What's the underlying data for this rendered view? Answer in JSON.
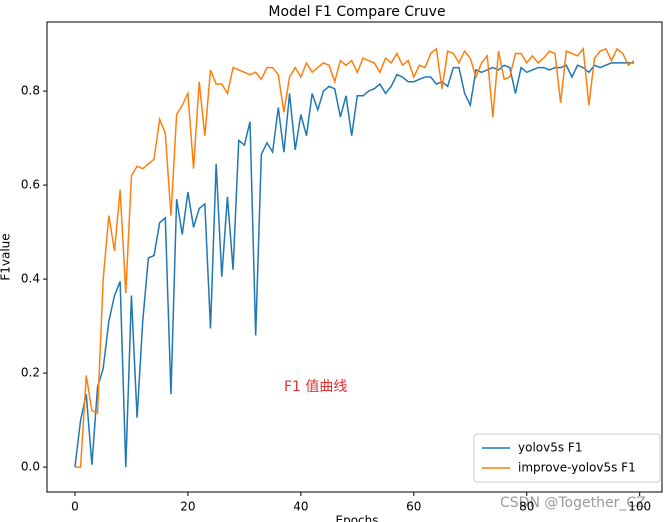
{
  "chart_data": {
    "type": "line",
    "title": "Model F1 Compare Cruve",
    "xlabel": "Epochs",
    "ylabel": "F1value",
    "annotations": [
      "F1  值曲线",
      "CSDN @Together_CZ"
    ],
    "x": [
      0,
      1,
      2,
      3,
      4,
      5,
      6,
      7,
      8,
      9,
      10,
      11,
      12,
      13,
      14,
      15,
      16,
      17,
      18,
      19,
      20,
      21,
      22,
      23,
      24,
      25,
      26,
      27,
      28,
      29,
      30,
      31,
      32,
      33,
      34,
      35,
      36,
      37,
      38,
      39,
      40,
      41,
      42,
      43,
      44,
      45,
      46,
      47,
      48,
      49,
      50,
      51,
      52,
      53,
      54,
      55,
      56,
      57,
      58,
      59,
      60,
      61,
      62,
      63,
      64,
      65,
      66,
      67,
      68,
      69,
      70,
      71,
      72,
      73,
      74,
      75,
      76,
      77,
      78,
      79,
      80,
      81,
      82,
      83,
      84,
      85,
      86,
      87,
      88,
      89,
      90,
      91,
      92,
      93,
      94,
      95,
      96,
      97,
      98,
      99
    ],
    "series": [
      {
        "name": "yolov5s F1",
        "color": "#1f77b4",
        "values": [
          0.0,
          0.1,
          0.155,
          0.005,
          0.17,
          0.21,
          0.31,
          0.365,
          0.395,
          0.0,
          0.365,
          0.105,
          0.31,
          0.445,
          0.45,
          0.52,
          0.53,
          0.155,
          0.57,
          0.495,
          0.585,
          0.51,
          0.55,
          0.56,
          0.295,
          0.645,
          0.405,
          0.575,
          0.42,
          0.695,
          0.685,
          0.735,
          0.28,
          0.665,
          0.69,
          0.67,
          0.765,
          0.67,
          0.795,
          0.675,
          0.75,
          0.705,
          0.795,
          0.76,
          0.8,
          0.81,
          0.805,
          0.745,
          0.79,
          0.705,
          0.79,
          0.79,
          0.8,
          0.805,
          0.815,
          0.795,
          0.81,
          0.835,
          0.83,
          0.82,
          0.82,
          0.825,
          0.83,
          0.83,
          0.815,
          0.82,
          0.81,
          0.85,
          0.85,
          0.795,
          0.77,
          0.845,
          0.84,
          0.845,
          0.85,
          0.845,
          0.855,
          0.85,
          0.795,
          0.85,
          0.84,
          0.845,
          0.85,
          0.85,
          0.845,
          0.85,
          0.85,
          0.855,
          0.83,
          0.855,
          0.85,
          0.84,
          0.855,
          0.85,
          0.855,
          0.86,
          0.86,
          0.86,
          0.86,
          0.86
        ]
      },
      {
        "name": "improve-yolov5s F1",
        "color": "#ff7f0e",
        "values": [
          0.0,
          0.0,
          0.195,
          0.12,
          0.115,
          0.4,
          0.535,
          0.46,
          0.59,
          0.37,
          0.62,
          0.64,
          0.635,
          0.645,
          0.655,
          0.74,
          0.71,
          0.535,
          0.75,
          0.77,
          0.795,
          0.635,
          0.82,
          0.705,
          0.845,
          0.815,
          0.815,
          0.795,
          0.85,
          0.845,
          0.84,
          0.835,
          0.84,
          0.825,
          0.85,
          0.85,
          0.835,
          0.755,
          0.83,
          0.85,
          0.83,
          0.86,
          0.84,
          0.85,
          0.86,
          0.855,
          0.82,
          0.865,
          0.855,
          0.865,
          0.84,
          0.87,
          0.865,
          0.86,
          0.84,
          0.87,
          0.86,
          0.88,
          0.855,
          0.865,
          0.83,
          0.855,
          0.85,
          0.88,
          0.89,
          0.805,
          0.885,
          0.88,
          0.86,
          0.885,
          0.87,
          0.83,
          0.86,
          0.875,
          0.745,
          0.885,
          0.825,
          0.83,
          0.88,
          0.88,
          0.86,
          0.875,
          0.86,
          0.87,
          0.885,
          0.88,
          0.775,
          0.885,
          0.88,
          0.875,
          0.89,
          0.77,
          0.87,
          0.885,
          0.89,
          0.865,
          0.89,
          0.88,
          0.855,
          0.865
        ]
      }
    ],
    "xlim": [
      -4.95,
      103.95
    ],
    "ylim": [
      -0.053,
      0.947
    ],
    "xticks": [
      0,
      20,
      40,
      60,
      80,
      100
    ],
    "yticks": [
      {
        "value": 0,
        "label": "0.0"
      },
      0.2,
      0.4,
      0.6,
      0.8
    ],
    "legend": "lower right",
    "grid": false
  }
}
